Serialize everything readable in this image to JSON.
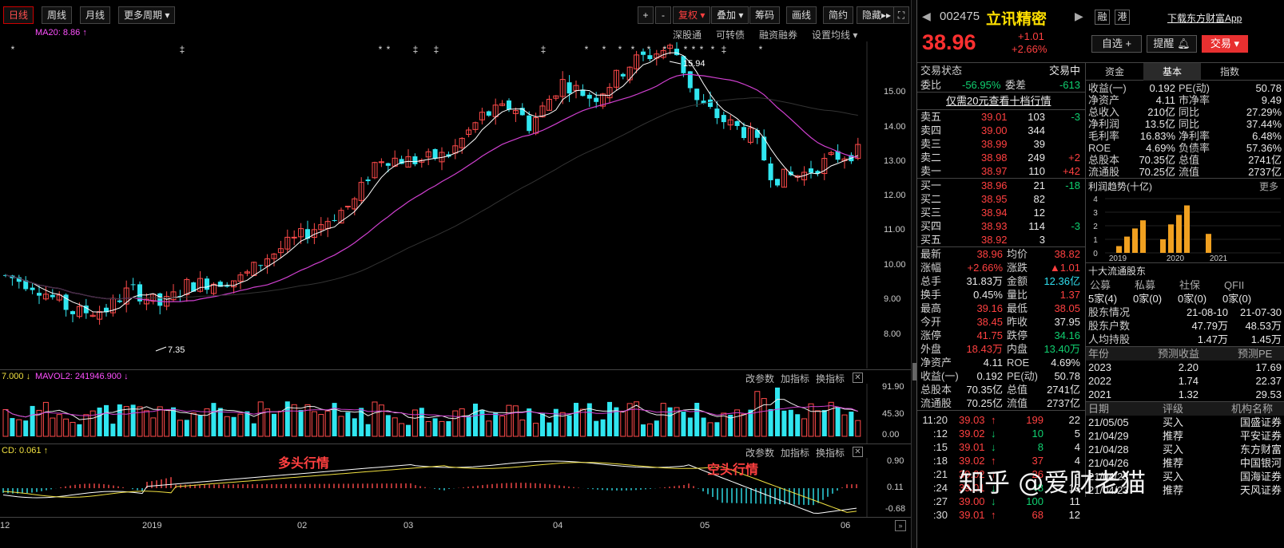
{
  "toolbar": {
    "period_day": "日线",
    "period_week": "周线",
    "period_month": "月线",
    "more_periods": "更多周期",
    "plus": "+",
    "minus": "-",
    "restore": "复权",
    "overlay": "叠加",
    "chips": "筹码",
    "draw": "画线",
    "simple": "简约",
    "hide": "隐藏"
  },
  "indicator_row": {
    "ma20": "MA20: 8.86",
    "shenggutong": "深股通",
    "convertible": "可转债",
    "margin": "融资融券",
    "ma_settings": "设置均线"
  },
  "price_axis": [
    "15.00",
    "14.00",
    "13.00",
    "12.00",
    "11.00",
    "10.00",
    "9.00",
    "8.00"
  ],
  "annotations": {
    "high": "15.94",
    "low": "7.35"
  },
  "volume": {
    "header": "7.000",
    "mavol2": "MAVOL2: 241946.900",
    "links": [
      "改参数",
      "加指标",
      "换指标"
    ],
    "axis": [
      "91.90",
      "45.30",
      "0.00"
    ]
  },
  "macd": {
    "header": "CD: 0.061",
    "links": [
      "改参数",
      "加指标",
      "换指标"
    ],
    "axis": [
      "0.90",
      "0.11",
      "-0.68"
    ],
    "label_bull": "多头行情",
    "label_bear": "空头行情"
  },
  "x_axis": [
    "12",
    "2019",
    "02",
    "03",
    "04",
    "05",
    "06"
  ],
  "stock": {
    "code": "002475",
    "name": "立讯精密",
    "price": "38.96",
    "change": "+1.01",
    "change_pct": "+2.66%",
    "tag_rong": "融",
    "tag_gang": "港",
    "download": "下载东方财富App",
    "btn_watch": "自选 +",
    "btn_alert": "提醒",
    "btn_trade": "交易"
  },
  "status": {
    "label": "交易状态",
    "value": "交易中"
  },
  "weibi": {
    "label": "委比",
    "value": "-56.95%",
    "wc_label": "委差",
    "wc_value": "-613"
  },
  "promo": "仅需20元查看十档行情",
  "asks": [
    {
      "label": "卖五",
      "price": "39.01",
      "vol": "103",
      "chg": "-3"
    },
    {
      "label": "卖四",
      "price": "39.00",
      "vol": "344",
      "chg": ""
    },
    {
      "label": "卖三",
      "price": "38.99",
      "vol": "39",
      "chg": ""
    },
    {
      "label": "卖二",
      "price": "38.98",
      "vol": "249",
      "chg": "+2"
    },
    {
      "label": "卖一",
      "price": "38.97",
      "vol": "110",
      "chg": "+42"
    }
  ],
  "bids": [
    {
      "label": "买一",
      "price": "38.96",
      "vol": "21",
      "chg": "-18"
    },
    {
      "label": "买二",
      "price": "38.95",
      "vol": "82",
      "chg": ""
    },
    {
      "label": "买三",
      "price": "38.94",
      "vol": "12",
      "chg": ""
    },
    {
      "label": "买四",
      "price": "38.93",
      "vol": "114",
      "chg": "-3"
    },
    {
      "label": "买五",
      "price": "38.92",
      "vol": "3",
      "chg": ""
    }
  ],
  "quote_stats": [
    {
      "l1": "最新",
      "v1": "38.96",
      "c1": "red",
      "l2": "均价",
      "v2": "38.82",
      "c2": "red"
    },
    {
      "l1": "涨幅",
      "v1": "+2.66%",
      "c1": "red",
      "l2": "涨跌",
      "v2": "▲1.01",
      "c2": "red"
    },
    {
      "l1": "总手",
      "v1": "31.83万",
      "c1": "wht",
      "l2": "金额",
      "v2": "12.36亿",
      "c2": "cyn"
    },
    {
      "l1": "换手",
      "v1": "0.45%",
      "c1": "wht",
      "l2": "量比",
      "v2": "1.37",
      "c2": "red"
    },
    {
      "l1": "最高",
      "v1": "39.16",
      "c1": "red",
      "l2": "最低",
      "v2": "38.05",
      "c2": "red"
    },
    {
      "l1": "今开",
      "v1": "38.45",
      "c1": "red",
      "l2": "昨收",
      "v2": "37.95",
      "c2": "wht"
    },
    {
      "l1": "涨停",
      "v1": "41.75",
      "c1": "red",
      "l2": "跌停",
      "v2": "34.16",
      "c2": "grn"
    },
    {
      "l1": "外盘",
      "v1": "18.43万",
      "c1": "red",
      "l2": "内盘",
      "v2": "13.40万",
      "c2": "grn"
    },
    {
      "l1": "净资产",
      "v1": "4.11",
      "c1": "wht",
      "l2": "ROE",
      "v2": "4.69%",
      "c2": "wht"
    },
    {
      "l1": "收益(一)",
      "v1": "0.192",
      "c1": "wht",
      "l2": "PE(动)",
      "v2": "50.78",
      "c2": "wht"
    },
    {
      "l1": "总股本",
      "v1": "70.35亿",
      "c1": "wht",
      "l2": "总值",
      "v2": "2741亿",
      "c2": "wht"
    },
    {
      "l1": "流通股",
      "v1": "70.25亿",
      "c1": "wht",
      "l2": "流值",
      "v2": "2737亿",
      "c2": "wht"
    }
  ],
  "ticks": [
    {
      "t": "11:20",
      "p": "39.03",
      "d": "up",
      "v": "199",
      "n": "22"
    },
    {
      "t": ":12",
      "p": "39.02",
      "d": "down",
      "v": "10",
      "n": "5"
    },
    {
      "t": ":15",
      "p": "39.01",
      "d": "down",
      "v": "8",
      "n": "4"
    },
    {
      "t": ":18",
      "p": "39.02",
      "d": "up",
      "v": "37",
      "n": "4"
    },
    {
      "t": ":21",
      "p": "39.02",
      "d": "up",
      "v": "26",
      "n": "3"
    },
    {
      "t": ":24",
      "p": "39.01",
      "d": "down",
      "v": "48",
      "n": "13"
    },
    {
      "t": ":27",
      "p": "39.00",
      "d": "down",
      "v": "100",
      "n": "11"
    },
    {
      "t": ":30",
      "p": "39.01",
      "d": "up",
      "v": "68",
      "n": "12"
    }
  ],
  "fin_tabs": [
    "资金",
    "基本",
    "指数"
  ],
  "fin_rows": [
    {
      "l1": "收益(一)",
      "v1": "0.192",
      "l2": "PE(动)",
      "v2": "50.78"
    },
    {
      "l1": "净资产",
      "v1": "4.11",
      "l2": "市净率",
      "v2": "9.49"
    },
    {
      "l1": "总收入",
      "v1": "210亿",
      "l2": "同比",
      "v2": "27.29%"
    },
    {
      "l1": "净利润",
      "v1": "13.5亿",
      "l2": "同比",
      "v2": "37.44%"
    },
    {
      "l1": "毛利率",
      "v1": "16.83%",
      "l2": "净利率",
      "v2": "6.48%"
    },
    {
      "l1": "ROE",
      "v1": "4.69%",
      "l2": "负债率",
      "v2": "57.36%"
    },
    {
      "l1": "总股本",
      "v1": "70.35亿",
      "l2": "总值",
      "v2": "2741亿"
    },
    {
      "l1": "流通股",
      "v1": "70.25亿",
      "l2": "流值",
      "v2": "2737亿"
    }
  ],
  "profit_trend": {
    "title": "利润趋势(十亿)",
    "more": "更多",
    "y_ticks": [
      "4",
      "3",
      "2",
      "1",
      "0"
    ],
    "x_labels": [
      "2019",
      "2020",
      "2021"
    ]
  },
  "chart_data": {
    "type": "bar",
    "title": "利润趋势(十亿)",
    "categories": [
      "2019-Q1",
      "2019-Q2",
      "2019-Q3",
      "2019-Q4",
      "2020-Q1",
      "2020-Q2",
      "2020-Q3",
      "2020-Q4",
      "2021-Q1"
    ],
    "values": [
      0.5,
      1.2,
      1.8,
      2.4,
      1.0,
      2.1,
      2.8,
      3.5,
      1.4
    ],
    "ylim": [
      0,
      4
    ]
  },
  "holders": {
    "title": "十大流通股东",
    "cols": [
      "公募",
      "私募",
      "社保",
      "QFII"
    ],
    "vals": [
      "5家(4)",
      "0家(0)",
      "0家(0)",
      "0家(0)"
    ],
    "rows": [
      {
        "l": "股东情况",
        "a": "21-08-10",
        "b": "21-07-30"
      },
      {
        "l": "股东户数",
        "a": "47.79万",
        "b": "48.53万"
      },
      {
        "l": "人均持股",
        "a": "1.47万",
        "b": "1.45万"
      }
    ]
  },
  "forecast": {
    "cols": [
      "年份",
      "预测收益",
      "预测PE"
    ],
    "rows": [
      {
        "y": "2023",
        "e": "2.20",
        "pe": "17.69"
      },
      {
        "y": "2022",
        "e": "1.74",
        "pe": "22.37"
      },
      {
        "y": "2021",
        "e": "1.32",
        "pe": "29.53"
      }
    ]
  },
  "ratings": {
    "cols": [
      "日期",
      "评级",
      "机构名称"
    ],
    "rows": [
      {
        "d": "21/05/05",
        "r": "买入",
        "o": "国盛证券"
      },
      {
        "d": "21/04/29",
        "r": "推荐",
        "o": "平安证券"
      },
      {
        "d": "21/04/28",
        "r": "买入",
        "o": "东方财富"
      },
      {
        "d": "21/04/26",
        "r": "推荐",
        "o": "中国银河"
      },
      {
        "d": "21/04/23",
        "r": "买入",
        "o": "国海证券"
      },
      {
        "d": "21/04/23",
        "r": "推荐",
        "o": "天风证券"
      }
    ]
  },
  "watermark": "知乎 @爱财老猫"
}
